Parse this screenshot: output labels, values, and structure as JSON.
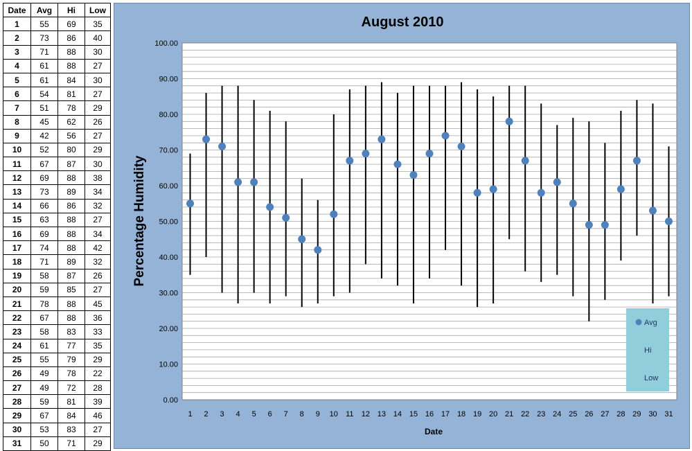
{
  "table": {
    "headers": [
      "Date",
      "Avg",
      "Hi",
      "Low"
    ],
    "rows": [
      [
        "1",
        "55",
        "69",
        "35"
      ],
      [
        "2",
        "73",
        "86",
        "40"
      ],
      [
        "3",
        "71",
        "88",
        "30"
      ],
      [
        "4",
        "61",
        "88",
        "27"
      ],
      [
        "5",
        "61",
        "84",
        "30"
      ],
      [
        "6",
        "54",
        "81",
        "27"
      ],
      [
        "7",
        "51",
        "78",
        "29"
      ],
      [
        "8",
        "45",
        "62",
        "26"
      ],
      [
        "9",
        "42",
        "56",
        "27"
      ],
      [
        "10",
        "52",
        "80",
        "29"
      ],
      [
        "11",
        "67",
        "87",
        "30"
      ],
      [
        "12",
        "69",
        "88",
        "38"
      ],
      [
        "13",
        "73",
        "89",
        "34"
      ],
      [
        "14",
        "66",
        "86",
        "32"
      ],
      [
        "15",
        "63",
        "88",
        "27"
      ],
      [
        "16",
        "69",
        "88",
        "34"
      ],
      [
        "17",
        "74",
        "88",
        "42"
      ],
      [
        "18",
        "71",
        "89",
        "32"
      ],
      [
        "19",
        "58",
        "87",
        "26"
      ],
      [
        "20",
        "59",
        "85",
        "27"
      ],
      [
        "21",
        "78",
        "88",
        "45"
      ],
      [
        "22",
        "67",
        "88",
        "36"
      ],
      [
        "23",
        "58",
        "83",
        "33"
      ],
      [
        "24",
        "61",
        "77",
        "35"
      ],
      [
        "25",
        "55",
        "79",
        "29"
      ],
      [
        "26",
        "49",
        "78",
        "22"
      ],
      [
        "27",
        "49",
        "72",
        "28"
      ],
      [
        "28",
        "59",
        "81",
        "39"
      ],
      [
        "29",
        "67",
        "84",
        "46"
      ],
      [
        "30",
        "53",
        "83",
        "27"
      ],
      [
        "31",
        "50",
        "71",
        "29"
      ]
    ]
  },
  "colors": {
    "chart_background": "#95b3d7",
    "plot_background": "#ffffff",
    "gridline": "#a6a6a6",
    "marker": "#4f81bd",
    "range_line": "#000000",
    "legend_background": "#92cddc"
  },
  "chart_data": {
    "type": "scatter",
    "title": "August 2010",
    "xlabel": "Date",
    "ylabel": "Percentage Humidity",
    "x": [
      1,
      2,
      3,
      4,
      5,
      6,
      7,
      8,
      9,
      10,
      11,
      12,
      13,
      14,
      15,
      16,
      17,
      18,
      19,
      20,
      21,
      22,
      23,
      24,
      25,
      26,
      27,
      28,
      29,
      30,
      31
    ],
    "xticks": [
      "1",
      "2",
      "3",
      "4",
      "5",
      "6",
      "7",
      "8",
      "9",
      "10",
      "11",
      "12",
      "13",
      "14",
      "15",
      "16",
      "17",
      "18",
      "19",
      "20",
      "21",
      "22",
      "23",
      "24",
      "25",
      "26",
      "27",
      "28",
      "29",
      "30",
      "31"
    ],
    "yticks": [
      "0.00",
      "10.00",
      "20.00",
      "30.00",
      "40.00",
      "50.00",
      "60.00",
      "70.00",
      "80.00",
      "90.00",
      "100.00"
    ],
    "ylim": [
      0,
      100
    ],
    "minor_grid_step": 2,
    "grid": true,
    "series": [
      {
        "name": "Avg",
        "values": [
          55,
          73,
          71,
          61,
          61,
          54,
          51,
          45,
          42,
          52,
          67,
          69,
          73,
          66,
          63,
          69,
          74,
          71,
          58,
          59,
          78,
          67,
          58,
          61,
          55,
          49,
          49,
          59,
          67,
          53,
          50
        ]
      },
      {
        "name": "Hi",
        "values": [
          69,
          86,
          88,
          88,
          84,
          81,
          78,
          62,
          56,
          80,
          87,
          88,
          89,
          86,
          88,
          88,
          88,
          89,
          87,
          85,
          88,
          88,
          83,
          77,
          79,
          78,
          72,
          81,
          84,
          83,
          71
        ]
      },
      {
        "name": "Low",
        "values": [
          35,
          40,
          30,
          27,
          30,
          27,
          29,
          26,
          27,
          29,
          30,
          38,
          34,
          32,
          27,
          34,
          42,
          32,
          26,
          27,
          45,
          36,
          33,
          35,
          29,
          22,
          28,
          39,
          46,
          27,
          29
        ]
      }
    ],
    "legend_position": "bottom-right",
    "legend": [
      "Avg",
      "Hi",
      "Low"
    ]
  }
}
